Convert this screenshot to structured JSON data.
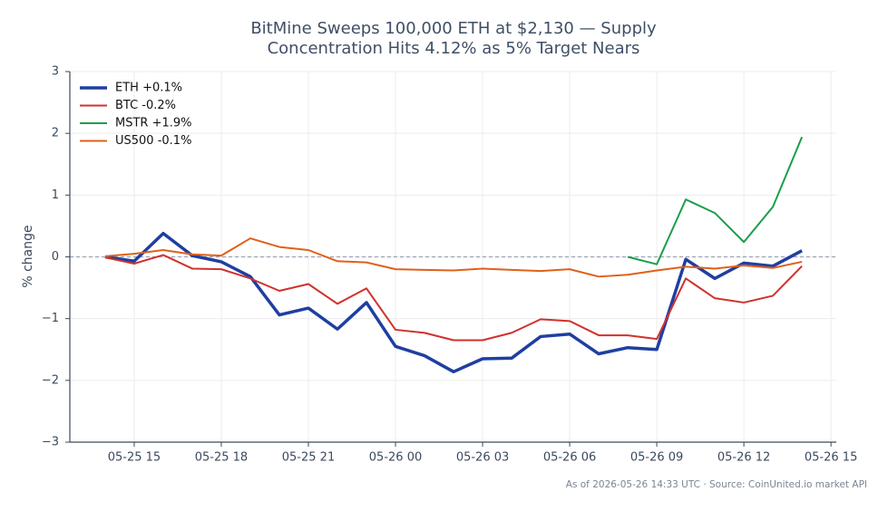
{
  "chart_data": {
    "type": "line",
    "title": [
      "BitMine Sweeps 100,000 ETH at $2,130 — Supply",
      "Concentration Hits 4.12% as 5% Target Nears"
    ],
    "ylabel": "% change",
    "source": "As of 2026-05-26 14:33 UTC · Source: CoinUnited.io market API",
    "x": [
      "05-25 14",
      "05-25 15",
      "05-25 16",
      "05-25 17",
      "05-25 18",
      "05-25 19",
      "05-25 20",
      "05-25 21",
      "05-25 22",
      "05-25 23",
      "05-26 00",
      "05-26 01",
      "05-26 02",
      "05-26 03",
      "05-26 04",
      "05-26 05",
      "05-26 06",
      "05-26 07",
      "05-26 08",
      "05-26 09",
      "05-26 10",
      "05-26 11",
      "05-26 12",
      "05-26 13",
      "05-26 14"
    ],
    "series": [
      {
        "name": "ETH +0.1%",
        "color": "#1f3fa0",
        "linewidth": 3.5,
        "values": [
          0.0,
          -0.07,
          0.38,
          0.02,
          -0.08,
          -0.32,
          -0.94,
          -0.83,
          -1.17,
          -0.74,
          -1.45,
          -1.6,
          -1.86,
          -1.65,
          -1.64,
          -1.29,
          -1.25,
          -1.57,
          -1.47,
          -1.5,
          -0.04,
          -0.35,
          -0.1,
          -0.15,
          0.1
        ]
      },
      {
        "name": "BTC -0.2%",
        "color": "#d0312d",
        "linewidth": 2,
        "values": [
          -0.01,
          -0.11,
          0.03,
          -0.19,
          -0.2,
          -0.35,
          -0.55,
          -0.44,
          -0.76,
          -0.51,
          -1.18,
          -1.23,
          -1.35,
          -1.35,
          -1.23,
          -1.01,
          -1.04,
          -1.27,
          -1.27,
          -1.33,
          -0.35,
          -0.67,
          -0.74,
          -0.63,
          -0.15
        ]
      },
      {
        "name": "MSTR +1.9%",
        "color": "#1a9e4a",
        "linewidth": 2,
        "values": [
          null,
          null,
          null,
          null,
          null,
          null,
          null,
          null,
          null,
          null,
          null,
          null,
          null,
          null,
          null,
          null,
          null,
          null,
          0.0,
          -0.12,
          0.93,
          0.71,
          0.24,
          0.81,
          1.94
        ]
      },
      {
        "name": "US500 -0.1%",
        "color": "#e0601a",
        "linewidth": 2,
        "values": [
          0.01,
          0.05,
          0.11,
          0.04,
          0.02,
          0.3,
          0.16,
          0.11,
          -0.07,
          -0.09,
          -0.2,
          -0.21,
          -0.22,
          -0.19,
          -0.21,
          -0.23,
          -0.2,
          -0.32,
          -0.29,
          -0.22,
          -0.16,
          -0.19,
          -0.14,
          -0.18,
          -0.08
        ]
      }
    ],
    "xlim": [
      "05-25 12:47",
      "05-26 15:11"
    ],
    "xticks": [
      "05-25 15",
      "05-25 18",
      "05-25 21",
      "05-26 00",
      "05-26 03",
      "05-26 06",
      "05-26 09",
      "05-26 12",
      "05-26 15"
    ],
    "ylim": [
      -3,
      3
    ],
    "yticks": [
      {
        "value": -3,
        "label": "−3"
      },
      {
        "value": -2,
        "label": "−2"
      },
      {
        "value": -1,
        "label": "−1"
      },
      0,
      1,
      2,
      3
    ],
    "reference_line": 0,
    "grid": true,
    "legend": "upper left"
  }
}
